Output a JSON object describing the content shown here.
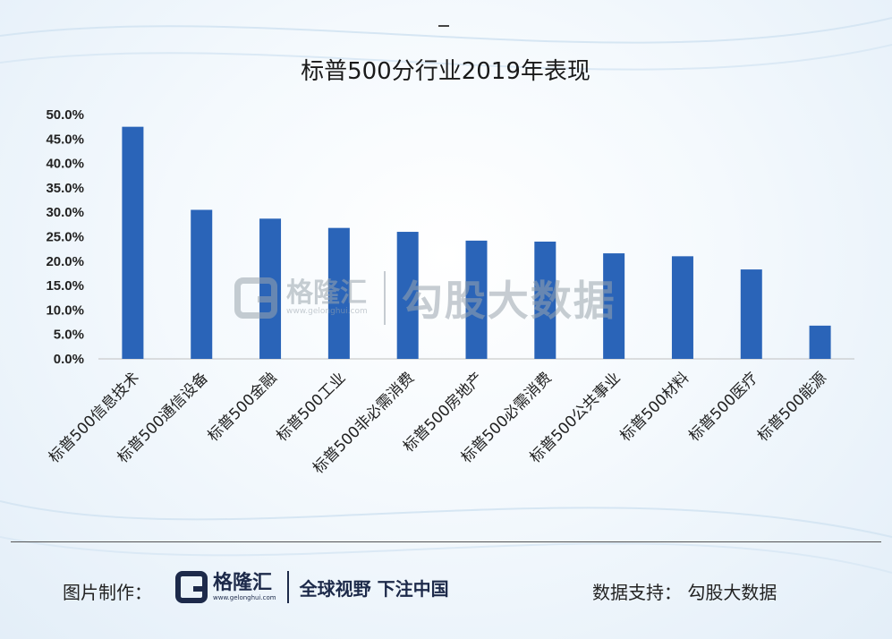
{
  "chart_data": {
    "type": "bar",
    "title": "标普500分行业2019年表现",
    "categories": [
      "标普500信息技术",
      "标普500通信设备",
      "标普500金融",
      "标普500工业",
      "标普500非必需消费",
      "标普500房地产",
      "标普500必需消费",
      "标普500公共事业",
      "标普500材料",
      "标普500医疗",
      "标普500能源"
    ],
    "values": [
      47.5,
      30.5,
      28.7,
      26.8,
      26.0,
      24.2,
      24.0,
      21.6,
      21.0,
      18.3,
      6.8
    ],
    "ylim": [
      0,
      50
    ],
    "yticks": [
      "0.0%",
      "5.0%",
      "10.0%",
      "15.0%",
      "20.0%",
      "25.0%",
      "30.0%",
      "35.0%",
      "40.0%",
      "45.0%",
      "50.0%"
    ],
    "xlabel": "",
    "ylabel": "",
    "bar_color": "#2a64b8"
  },
  "watermark": {
    "brand": "格隆汇",
    "url": "www.gelonghui.com",
    "data_brand": "勾股大数据"
  },
  "footer": {
    "made_by": "图片制作：",
    "logo_name": "格隆汇",
    "logo_url": "www.gelonghui.com",
    "slogan": "全球视野 下注中国",
    "data_support": "数据支持：  勾股大数据"
  }
}
